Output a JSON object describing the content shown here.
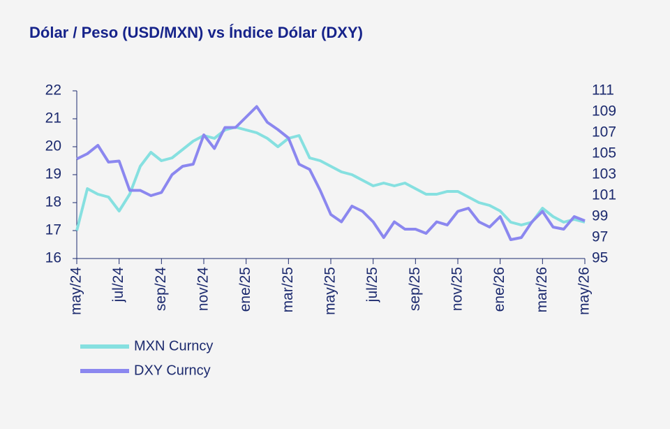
{
  "chart_data": {
    "type": "line",
    "title": "Dólar / Peso (USD/MXN) vs Índice Dólar (DXY)",
    "x": [
      0,
      0.5,
      1,
      1.5,
      2,
      2.5,
      3,
      3.5,
      4,
      4.5,
      5,
      5.5,
      6,
      6.5,
      7,
      7.5,
      8,
      8.5,
      9,
      9.5,
      10,
      10.5,
      11,
      11.5,
      12,
      12.5,
      13,
      13.5,
      14,
      14.5,
      15,
      15.5,
      16,
      16.5,
      17,
      17.5,
      18,
      18.5,
      19,
      19.5,
      20,
      20.5,
      21,
      21.5,
      22,
      22.5,
      23,
      23.5,
      24
    ],
    "xlim": [
      0,
      24
    ],
    "xticks": [
      {
        "value": 0,
        "label": "may/24"
      },
      {
        "value": 2,
        "label": "jul/24"
      },
      {
        "value": 4,
        "label": "sep/24"
      },
      {
        "value": 6,
        "label": "nov/24"
      },
      {
        "value": 8,
        "label": "ene/25"
      },
      {
        "value": 10,
        "label": "mar/25"
      },
      {
        "value": 12,
        "label": "may/25"
      },
      {
        "value": 14,
        "label": "jul/25"
      },
      {
        "value": 16,
        "label": "sep/25"
      },
      {
        "value": 18,
        "label": "nov/25"
      },
      {
        "value": 20,
        "label": "ene/26"
      },
      {
        "value": 22,
        "label": "mar/26"
      },
      {
        "value": 24,
        "label": "may/26"
      }
    ],
    "ylim": [
      16,
      22
    ],
    "yticks": [
      16,
      17,
      18,
      19,
      20,
      21,
      22
    ],
    "y2lim": [
      95,
      111
    ],
    "y2ticks": [
      95,
      97,
      99,
      101,
      103,
      105,
      107,
      109,
      111
    ],
    "series": [
      {
        "name": "MXN Curncy",
        "color": "#86e0e0",
        "values": [
          17.0,
          18.5,
          18.3,
          18.2,
          17.7,
          18.3,
          19.3,
          19.8,
          19.5,
          19.6,
          19.9,
          20.2,
          20.4,
          20.3,
          20.6,
          20.7,
          20.6,
          20.5,
          20.3,
          20.0,
          20.3,
          20.4,
          19.6,
          19.5,
          19.3,
          19.1,
          19.0,
          18.8,
          18.6,
          18.7,
          18.6,
          18.7,
          18.5,
          18.3,
          18.3,
          18.4,
          18.4,
          18.2,
          18.0,
          17.9,
          17.7,
          17.3,
          17.2,
          17.3,
          17.8,
          17.5,
          17.3,
          17.4,
          17.3
        ]
      },
      {
        "name": "DXY Curncy",
        "color": "#8b87ef",
        "axis": "y2",
        "values": [
          104.5,
          105,
          105.8,
          104.2,
          104.3,
          101.5,
          101.5,
          101,
          101.3,
          103,
          103.8,
          104,
          106.8,
          105.5,
          107.5,
          107.5,
          108.5,
          109.5,
          108,
          107.3,
          106.5,
          104,
          103.5,
          101.5,
          99.2,
          98.5,
          100,
          99.5,
          98.5,
          97,
          98.5,
          97.8,
          97.8,
          97.4,
          98.5,
          98.2,
          99.5,
          99.8,
          98.5,
          98.0,
          99.0,
          96.8,
          97,
          98.5,
          99.5,
          98.0,
          97.8,
          99.0,
          98.6
        ]
      }
    ]
  }
}
